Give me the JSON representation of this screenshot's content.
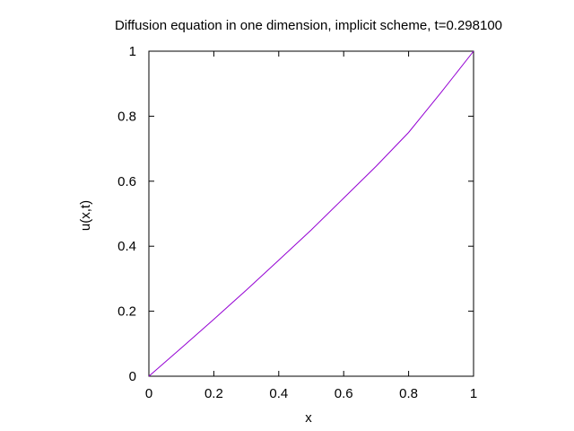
{
  "chart_data": {
    "type": "line",
    "title": "Diffusion equation in one dimension, implicit scheme, t=0.298100",
    "xlabel": "x",
    "ylabel": "u(x,t)",
    "xlim": [
      0,
      1
    ],
    "ylim": [
      0,
      1
    ],
    "xticks": [
      "0",
      "0.2",
      "0.4",
      "0.6",
      "0.8",
      "1"
    ],
    "yticks": [
      "0",
      "0.2",
      "0.4",
      "0.6",
      "0.8",
      "1"
    ],
    "grid": false,
    "legend": "none",
    "series": [
      {
        "color": "#9400d3",
        "x": [
          0,
          0.1,
          0.2,
          0.3,
          0.4,
          0.5,
          0.6,
          0.7,
          0.8,
          0.9,
          1.0
        ],
        "y": [
          0,
          0.087,
          0.175,
          0.265,
          0.357,
          0.45,
          0.548,
          0.646,
          0.75,
          0.873,
          1.0
        ]
      }
    ]
  }
}
